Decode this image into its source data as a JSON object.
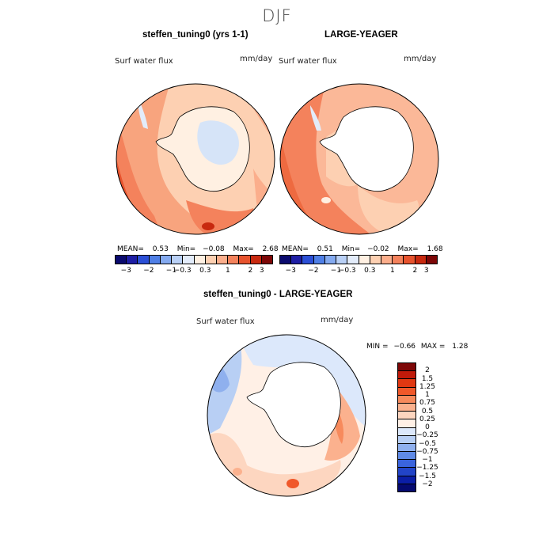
{
  "season": "DJF",
  "panels": {
    "p1": {
      "title": "steffen_tuning0 (yrs 1-1)",
      "variable": "Surf water flux",
      "units": "mm/day",
      "mean_label": "MEAN=",
      "mean": "0.53",
      "min_label": "Min=",
      "min": "−0.08",
      "max_label": "Max=",
      "max": "2.68"
    },
    "p2": {
      "title": "LARGE-YEAGER",
      "variable": "Surf water flux",
      "units": "mm/day",
      "mean_label": "MEAN=",
      "mean": "0.51",
      "min_label": "Min=",
      "min": "−0.02",
      "max_label": "Max=",
      "max": "1.68"
    },
    "diff": {
      "title": "steffen_tuning0 - LARGE-YEAGER",
      "variable": "Surf water flux",
      "units": "mm/day",
      "min_label": "MIN =",
      "min": "−0.66",
      "max_label": "MAX =",
      "max": "1.28"
    }
  },
  "colorbar_top": {
    "colors": [
      "#0a0a6e",
      "#1e1ea5",
      "#2b4fd6",
      "#4f7fe6",
      "#84aaf0",
      "#b9d0f6",
      "#e3ecfa",
      "#fff0e2",
      "#fdd0b2",
      "#fbae8c",
      "#f4825c",
      "#e7532e",
      "#c8290f",
      "#7d0707"
    ],
    "ticks": [
      "−3",
      "−2",
      "−1",
      "−0.3",
      "0.3",
      "1",
      "2",
      "3"
    ]
  },
  "colorbar_diff": {
    "colors": [
      "#7d0707",
      "#c01a0a",
      "#e03812",
      "#f0582a",
      "#f78a5c",
      "#fbb18e",
      "#fdd6c0",
      "#fff0e6",
      "#dce8fb",
      "#b8cff4",
      "#8fb0ee",
      "#5f8ae6",
      "#3a64dd",
      "#2244c8",
      "#0b1ea6",
      "#050a70"
    ],
    "labels": [
      "2",
      "1.5",
      "1.25",
      "1",
      "0.75",
      "0.5",
      "0.25",
      "0",
      "−0.25",
      "−0.5",
      "−0.75",
      "−1",
      "−1.25",
      "−1.5",
      "−2"
    ]
  }
}
